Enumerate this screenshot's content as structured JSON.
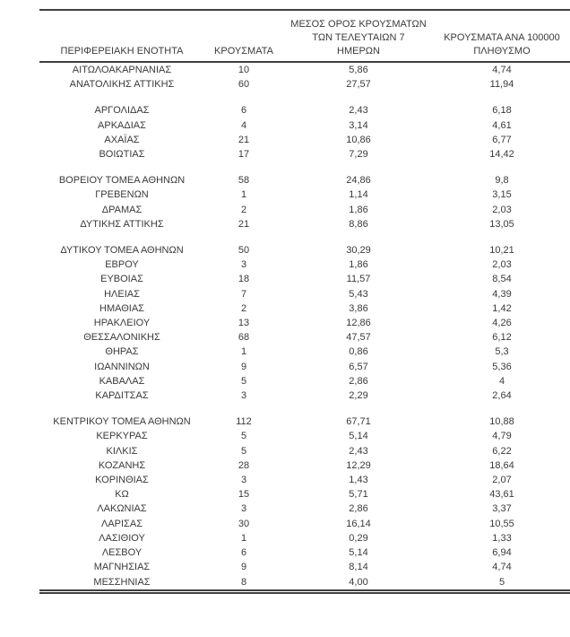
{
  "table": {
    "headers": {
      "region": "ΠΕΡΙΦΕΡΕΙΑΚΗ ΕΝΟΤΗΤΑ",
      "cases": "ΚΡΟΥΣΜΑΤΑ",
      "avg7_lines": [
        "ΜΕΣΟΣ ΟΡΟΣ ΚΡΟΥΣΜΑΤΩΝ",
        "ΤΩΝ ΤΕΛΕΥΤΑΙΩΝ 7",
        "ΗΜΕΡΩΝ"
      ],
      "per100k_lines": [
        "ΚΡΟΥΣΜΑΤΑ ΑΝΑ 100000",
        "ΠΛΗΘΥΣΜΟ"
      ]
    },
    "groups": [
      [
        {
          "region": "ΑΙΤΩΛΟΑΚΑΡΝΑΝΙΑΣ",
          "cases": "10",
          "avg7": "5,86",
          "per100k": "4,74"
        },
        {
          "region": "ΑΝΑΤΟΛΙΚΗΣ ΑΤΤΙΚΗΣ",
          "cases": "60",
          "avg7": "27,57",
          "per100k": "11,94"
        }
      ],
      [
        {
          "region": "ΑΡΓΟΛΙΔΑΣ",
          "cases": "6",
          "avg7": "2,43",
          "per100k": "6,18"
        },
        {
          "region": "ΑΡΚΑΔΙΑΣ",
          "cases": "4",
          "avg7": "3,14",
          "per100k": "4,61"
        },
        {
          "region": "ΑΧΑΪΑΣ",
          "cases": "21",
          "avg7": "10,86",
          "per100k": "6,77"
        },
        {
          "region": "ΒΟΙΩΤΙΑΣ",
          "cases": "17",
          "avg7": "7,29",
          "per100k": "14,42"
        }
      ],
      [
        {
          "region": "ΒΟΡΕΙΟΥ ΤΟΜΕΑ ΑΘΗΝΩΝ",
          "cases": "58",
          "avg7": "24,86",
          "per100k": "9,8"
        },
        {
          "region": "ΓΡΕΒΕΝΩΝ",
          "cases": "1",
          "avg7": "1,14",
          "per100k": "3,15"
        },
        {
          "region": "ΔΡΑΜΑΣ",
          "cases": "2",
          "avg7": "1,86",
          "per100k": "2,03"
        },
        {
          "region": "ΔΥΤΙΚΗΣ ΑΤΤΙΚΗΣ",
          "cases": "21",
          "avg7": "8,86",
          "per100k": "13,05"
        }
      ],
      [
        {
          "region": "ΔΥΤΙΚΟΥ ΤΟΜΕΑ ΑΘΗΝΩΝ",
          "cases": "50",
          "avg7": "30,29",
          "per100k": "10,21"
        },
        {
          "region": "ΕΒΡΟΥ",
          "cases": "3",
          "avg7": "1,86",
          "per100k": "2,03"
        },
        {
          "region": "ΕΥΒΟΙΑΣ",
          "cases": "18",
          "avg7": "11,57",
          "per100k": "8,54"
        },
        {
          "region": "ΗΛΕΙΑΣ",
          "cases": "7",
          "avg7": "5,43",
          "per100k": "4,39"
        },
        {
          "region": "ΗΜΑΘΙΑΣ",
          "cases": "2",
          "avg7": "3,86",
          "per100k": "1,42"
        },
        {
          "region": "ΗΡΑΚΛΕΙΟΥ",
          "cases": "13",
          "avg7": "12,86",
          "per100k": "4,26"
        },
        {
          "region": "ΘΕΣΣΑΛΟΝΙΚΗΣ",
          "cases": "68",
          "avg7": "47,57",
          "per100k": "6,12"
        },
        {
          "region": "ΘΗΡΑΣ",
          "cases": "1",
          "avg7": "0,86",
          "per100k": "5,3"
        },
        {
          "region": "ΙΩΑΝΝΙΝΩΝ",
          "cases": "9",
          "avg7": "6,57",
          "per100k": "5,36"
        },
        {
          "region": "ΚΑΒΑΛΑΣ",
          "cases": "5",
          "avg7": "2,86",
          "per100k": "4"
        },
        {
          "region": "ΚΑΡΔΙΤΣΑΣ",
          "cases": "3",
          "avg7": "2,29",
          "per100k": "2,64"
        }
      ],
      [
        {
          "region": "ΚΕΝΤΡΙΚΟΥ ΤΟΜΕΑ ΑΘΗΝΩΝ",
          "cases": "112",
          "avg7": "67,71",
          "per100k": "10,88"
        },
        {
          "region": "ΚΕΡΚΥΡΑΣ",
          "cases": "5",
          "avg7": "5,14",
          "per100k": "4,79"
        },
        {
          "region": "ΚΙΛΚΙΣ",
          "cases": "5",
          "avg7": "2,43",
          "per100k": "6,22"
        },
        {
          "region": "ΚΟΖΑΝΗΣ",
          "cases": "28",
          "avg7": "12,29",
          "per100k": "18,64"
        },
        {
          "region": "ΚΟΡΙΝΘΙΑΣ",
          "cases": "3",
          "avg7": "1,43",
          "per100k": "2,07"
        },
        {
          "region": "ΚΩ",
          "cases": "15",
          "avg7": "5,71",
          "per100k": "43,61"
        },
        {
          "region": "ΛΑΚΩΝΙΑΣ",
          "cases": "3",
          "avg7": "2,86",
          "per100k": "3,37"
        },
        {
          "region": "ΛΑΡΙΣΑΣ",
          "cases": "30",
          "avg7": "16,14",
          "per100k": "10,55"
        },
        {
          "region": "ΛΑΣΙΘΙΟΥ",
          "cases": "1",
          "avg7": "0,29",
          "per100k": "1,33"
        },
        {
          "region": "ΛΕΣΒΟΥ",
          "cases": "6",
          "avg7": "5,14",
          "per100k": "6,94"
        },
        {
          "region": "ΜΑΓΝΗΣΙΑΣ",
          "cases": "9",
          "avg7": "8,14",
          "per100k": "4,74"
        },
        {
          "region": "ΜΕΣΣΗΝΙΑΣ",
          "cases": "8",
          "avg7": "4,00",
          "per100k": "5"
        }
      ]
    ]
  },
  "colors": {
    "text": "#3a3a3a",
    "rule": "#3f3f3f",
    "background": "#ffffff"
  }
}
